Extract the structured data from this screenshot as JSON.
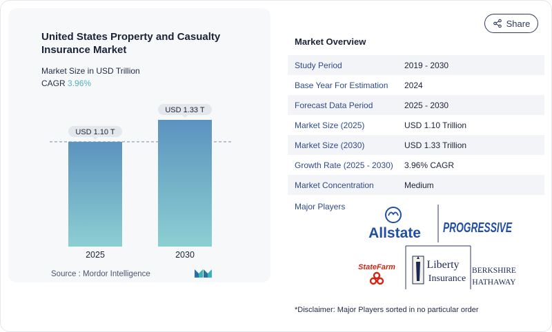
{
  "header": {
    "title": "United States Property and Casualty Insurance Market",
    "subtitle": "Market Size in USD Trillion",
    "cagr_label": "CAGR",
    "cagr_value": "3.96%",
    "share_label": "Share"
  },
  "chart_data": {
    "type": "bar",
    "categories": [
      "2025",
      "2030"
    ],
    "values": [
      1.1,
      1.33
    ],
    "data_labels": [
      "USD 1.10 T",
      "USD 1.33 T"
    ],
    "colors": [
      "#5b93bf",
      "#8ccfd2"
    ],
    "ylim": [
      0,
      1.33
    ],
    "reference_line": 1.1
  },
  "source": {
    "label": "Source :",
    "name": "Mordor Intelligence"
  },
  "overview": {
    "title": "Market Overview",
    "rows": [
      {
        "label": "Study Period",
        "value": "2019 - 2030"
      },
      {
        "label": "Base Year For Estimation",
        "value": "2024"
      },
      {
        "label": "Forecast Data Period",
        "value": "2025 - 2030"
      },
      {
        "label": "Market Size (2025)",
        "value": "USD 1.10 Trillion"
      },
      {
        "label": "Market Size (2030)",
        "value": "USD 1.33 Trillion"
      },
      {
        "label": "Growth Rate (2025 - 2030)",
        "value": "3.96% CAGR"
      },
      {
        "label": "Market Concentration",
        "value": "Medium"
      }
    ],
    "players_label": "Major Players"
  },
  "players": {
    "allstate": "Allstate",
    "progressive": "PROGRESSIVE",
    "statefarm": "StateFarm",
    "liberty_1": "Liberty",
    "liberty_2": "Insurance",
    "berkshire_1": "BERKSHIRE",
    "berkshire_2": "HATHAWAY"
  },
  "disclaimer": "*Disclaimer: Major Players sorted in no particular order"
}
